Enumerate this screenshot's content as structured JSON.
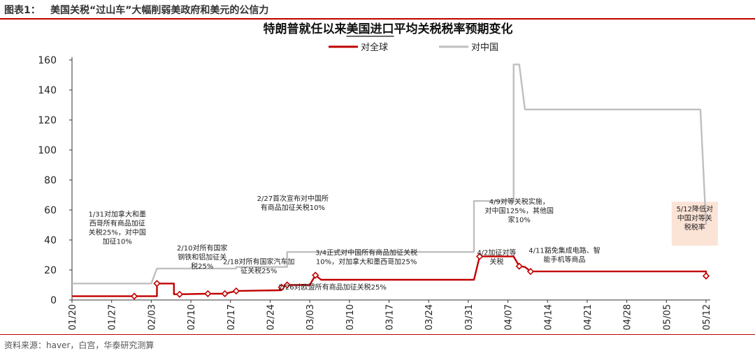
{
  "figure": {
    "label": "图表1：",
    "title": "美国关税“过山车”大幅削弱美政府和美元的公信力",
    "source": "资料来源：haver，白宫，华泰研究测算"
  },
  "colors": {
    "red": "#c00000",
    "gray": "#bfbfbf",
    "brand": "#c00000",
    "highlight_fill": "#fbe3d6"
  },
  "chart_data": {
    "type": "line",
    "title": "特朗普就任以来美国进口平均关税税率预期变化",
    "title_underlined_part": "美国进口",
    "xlabel": "",
    "ylabel": "",
    "ylim": [
      0,
      160
    ],
    "yticks": [
      0,
      20,
      40,
      60,
      80,
      100,
      120,
      140,
      160
    ],
    "grid": false,
    "legend_position": "top-center",
    "x_range": [
      "2025-01-20",
      "2025-05-12"
    ],
    "x_ticks": [
      {
        "date": "2025-01-20",
        "label": "01/20"
      },
      {
        "date": "2025-01-27",
        "label": "01/27"
      },
      {
        "date": "2025-02-03",
        "label": "02/03"
      },
      {
        "date": "2025-02-10",
        "label": "02/10"
      },
      {
        "date": "2025-02-17",
        "label": "02/17"
      },
      {
        "date": "2025-02-24",
        "label": "02/24"
      },
      {
        "date": "2025-03-03",
        "label": "03/03"
      },
      {
        "date": "2025-03-10",
        "label": "03/10"
      },
      {
        "date": "2025-03-17",
        "label": "03/17"
      },
      {
        "date": "2025-03-24",
        "label": "03/24"
      },
      {
        "date": "2025-03-31",
        "label": "03/31"
      },
      {
        "date": "2025-04-07",
        "label": "04/07"
      },
      {
        "date": "2025-04-14",
        "label": "04/14"
      },
      {
        "date": "2025-04-21",
        "label": "04/21"
      },
      {
        "date": "2025-04-28",
        "label": "04/28"
      },
      {
        "date": "2025-05-05",
        "label": "05/05"
      },
      {
        "date": "2025-05-12",
        "label": "05/12"
      }
    ],
    "series": [
      {
        "name": "对全球",
        "color": "#c00000",
        "points": [
          {
            "x": "2025-01-20",
            "y": 2.5
          },
          {
            "x": "2025-01-31",
            "y": 2.5,
            "marker": true
          },
          {
            "x": "2025-02-04",
            "y": 2.5
          },
          {
            "x": "2025-02-04",
            "y": 11.0,
            "marker": true
          },
          {
            "x": "2025-02-07",
            "y": 11.0
          },
          {
            "x": "2025-02-07",
            "y": 3.8
          },
          {
            "x": "2025-02-08",
            "y": 3.8,
            "marker": true
          },
          {
            "x": "2025-02-13",
            "y": 4.2,
            "marker": true
          },
          {
            "x": "2025-02-16",
            "y": 4.2,
            "marker": true
          },
          {
            "x": "2025-02-18",
            "y": 6.0,
            "marker": true
          },
          {
            "x": "2025-02-26",
            "y": 6.5
          },
          {
            "x": "2025-02-26",
            "y": 8.5,
            "marker": true
          },
          {
            "x": "2025-02-27",
            "y": 10.0,
            "marker": true
          },
          {
            "x": "2025-03-03",
            "y": 10.0
          },
          {
            "x": "2025-03-04",
            "y": 16.5,
            "marker": true
          },
          {
            "x": "2025-03-05",
            "y": 13.5
          },
          {
            "x": "2025-04-01",
            "y": 13.5
          },
          {
            "x": "2025-04-02",
            "y": 29.0,
            "marker": true
          },
          {
            "x": "2025-04-08",
            "y": 29.0
          },
          {
            "x": "2025-04-09",
            "y": 22.5,
            "marker": true
          },
          {
            "x": "2025-04-10",
            "y": 22.0
          },
          {
            "x": "2025-04-11",
            "y": 19.0,
            "marker": true
          },
          {
            "x": "2025-05-12",
            "y": 19.0
          },
          {
            "x": "2025-05-12",
            "y": 16.0,
            "marker": true
          }
        ]
      },
      {
        "name": "对中国",
        "color": "#bfbfbf",
        "points": [
          {
            "x": "2025-01-20",
            "y": 11.0
          },
          {
            "x": "2025-02-03",
            "y": 11.0
          },
          {
            "x": "2025-02-04",
            "y": 21.0
          },
          {
            "x": "2025-02-18",
            "y": 21.0
          },
          {
            "x": "2025-02-18",
            "y": 22.0
          },
          {
            "x": "2025-02-27",
            "y": 22.0
          },
          {
            "x": "2025-02-27",
            "y": 32.0
          },
          {
            "x": "2025-04-01",
            "y": 32.0
          },
          {
            "x": "2025-04-01",
            "y": 66.0
          },
          {
            "x": "2025-04-08",
            "y": 66.0
          },
          {
            "x": "2025-04-08",
            "y": 157.0
          },
          {
            "x": "2025-04-09",
            "y": 157.0
          },
          {
            "x": "2025-04-10",
            "y": 127.0
          },
          {
            "x": "2025-05-11",
            "y": 127.0
          },
          {
            "x": "2025-05-12",
            "y": 50.0
          }
        ]
      }
    ],
    "annotations": [
      {
        "anchor": "2025-01-28",
        "level": 55.5,
        "lines": [
          "1/31对加拿大和墨",
          "西哥所有商品加征",
          "关税25%，对中国",
          "加征10%"
        ],
        "highlight": false
      },
      {
        "anchor": "2025-02-12",
        "level": 33.0,
        "lines": [
          "2/10对所有国家",
          "钢铁和铝加征关",
          "税25%"
        ],
        "highlight": false
      },
      {
        "anchor": "2025-02-22",
        "level": 24.0,
        "lines": [
          "2/18对所有国家汽车加",
          "征关税25%"
        ],
        "highlight": false
      },
      {
        "anchor": "2025-02-28",
        "level": 66.0,
        "lines": [
          "2/27首次宣布对中国所",
          "有商品加征关税10%"
        ],
        "highlight": false
      },
      {
        "anchor": "2025-03-07",
        "level": 7.0,
        "lines": [
          "2/26对欧盟所有商品加征关税25%"
        ],
        "highlight": false
      },
      {
        "anchor": "2025-03-13",
        "level": 30.0,
        "lines": [
          "3/4正式对中国所有商品加征关税",
          "10%，对加拿大和墨西哥加25%"
        ],
        "highlight": false
      },
      {
        "anchor": "2025-04-05",
        "level": 30.0,
        "lines": [
          "4/2加征对等",
          "关税"
        ],
        "highlight": false
      },
      {
        "anchor": "2025-04-09",
        "level": 64.0,
        "lines": [
          "4/9对等关税实施，",
          "对中国125%，其他国",
          "家10%"
        ],
        "highlight": false
      },
      {
        "anchor": "2025-04-17",
        "level": 31.5,
        "lines": [
          "4/11豁免集成电路、智",
          "能手机等商品"
        ],
        "highlight": false
      },
      {
        "anchor": "2025-05-10",
        "level": 59.0,
        "lines": [
          "5/12降低对",
          "中国对等关",
          "税税率"
        ],
        "highlight": true
      }
    ]
  }
}
